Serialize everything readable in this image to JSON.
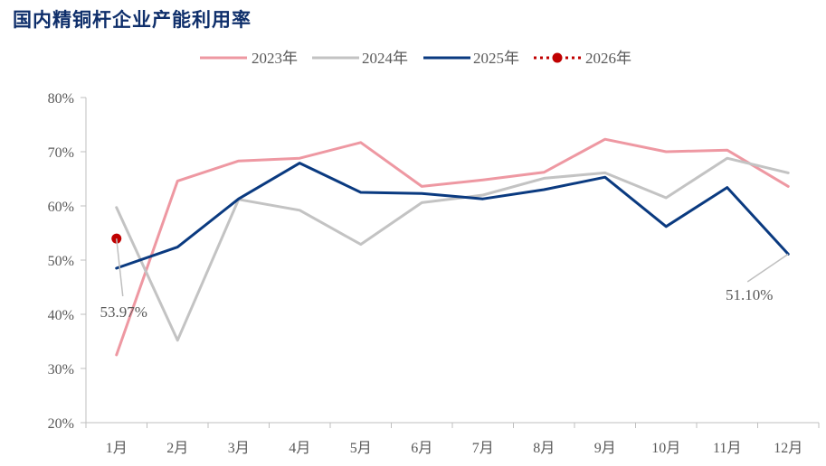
{
  "chart_data": {
    "type": "line",
    "title": "国内精铜杆企业产能利用率",
    "categories": [
      "1月",
      "2月",
      "3月",
      "4月",
      "5月",
      "6月",
      "7月",
      "8月",
      "9月",
      "10月",
      "11月",
      "12月"
    ],
    "yticks": [
      "20%",
      "30%",
      "40%",
      "50%",
      "60%",
      "70%",
      "80%"
    ],
    "ylim": [
      20,
      80
    ],
    "grid": false,
    "legend_position": "top",
    "series": [
      {
        "name": "2023年",
        "color": "#ee98a2",
        "dashed": false,
        "marker": false,
        "values": [
          32.5,
          64.6,
          68.3,
          68.8,
          71.7,
          63.6,
          64.8,
          66.2,
          72.3,
          70.0,
          70.3,
          63.6
        ]
      },
      {
        "name": "2024年",
        "color": "#c3c3c3",
        "dashed": false,
        "marker": false,
        "values": [
          59.7,
          35.2,
          61.2,
          59.2,
          52.9,
          60.6,
          62.0,
          65.1,
          66.1,
          61.5,
          68.8,
          66.1
        ]
      },
      {
        "name": "2025年",
        "color": "#0a3a80",
        "dashed": false,
        "marker": false,
        "values": [
          48.5,
          52.4,
          61.3,
          67.9,
          62.5,
          62.3,
          61.3,
          63.0,
          65.3,
          56.2,
          63.4,
          51.1
        ]
      },
      {
        "name": "2026年",
        "color": "#c00000",
        "dashed": true,
        "marker": true,
        "values": [
          53.97,
          null,
          null,
          null,
          null,
          null,
          null,
          null,
          null,
          null,
          null,
          null
        ]
      }
    ],
    "annotations": [
      {
        "text": "53.97%",
        "index": 0,
        "value": 53.97
      },
      {
        "text": "51.10%",
        "index": 11,
        "value": 51.1
      }
    ]
  }
}
